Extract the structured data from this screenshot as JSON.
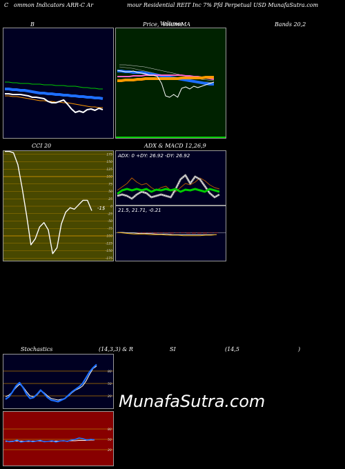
{
  "header": {
    "c": "C",
    "left": "ommon Indicators ARR-C Ar",
    "right": "mour Residential REIT Inc 7% Pfd Perpetual USD MunafaSutra.com"
  },
  "panels": {
    "b": {
      "title": "B"
    },
    "price": {
      "title_a": "Price,",
      "title_b": "Volume",
      "title_c": "MA",
      "overlap": "Volume"
    },
    "bands": {
      "title": "Bands 20,2"
    },
    "cci": {
      "title": "CCI 20",
      "last": "-1$"
    },
    "adx": {
      "title": "ADX  & MACD 12,26,9",
      "readout": "ADX: 0  +DY: 26.92  -DY: 26.92"
    },
    "macd": {
      "readout": "21.5,  21.71,  -0.21"
    },
    "stoch": {
      "title": "Stochastics",
      "params": "(14,3,3) & R",
      "si": "SI",
      "rsi_params": "(14,5",
      "close_paren": ")"
    }
  },
  "watermark": "MunafaSutra.com",
  "colors": {
    "navy": "#000022",
    "dark_green": "#002200",
    "olive": "#484800",
    "red_bg": "#880000",
    "blue": "#1e6fff",
    "white": "#ffffff",
    "orange": "#ff9900",
    "green": "#00cc00",
    "pink": "#ff66cc",
    "grid": "#aa7700"
  },
  "chart_data": [
    {
      "type": "line",
      "name": "bollinger",
      "series": [
        {
          "values": [
            78,
            78,
            79,
            79,
            80,
            80,
            80,
            81,
            81,
            81,
            82,
            82,
            82,
            83,
            83,
            83,
            84,
            84,
            84,
            85,
            86,
            86,
            87,
            87,
            88,
            88
          ]
        },
        {
          "values": [
            88,
            88,
            89,
            89,
            90,
            90,
            91,
            92,
            93,
            94,
            94,
            95,
            95,
            96,
            96,
            97,
            97,
            98,
            98,
            99,
            99,
            100,
            100,
            101,
            101,
            102
          ]
        },
        {
          "values": [
            98,
            98,
            99,
            99,
            100,
            101,
            102,
            103,
            104,
            105,
            105,
            106,
            106,
            107,
            107,
            108,
            108,
            109,
            110,
            111,
            112,
            113,
            114,
            114,
            115,
            115
          ]
        },
        {
          "values": [
            95,
            95,
            96,
            96,
            96,
            97,
            98,
            100,
            100,
            101,
            102,
            106,
            108,
            108,
            106,
            104,
            110,
            117,
            122,
            120,
            122,
            118,
            117,
            119,
            116,
            118
          ]
        }
      ]
    },
    {
      "type": "line",
      "name": "price-volume-ma",
      "series": [
        {
          "values": [
            102,
            102,
            103,
            103,
            104,
            104,
            104,
            105,
            106,
            107,
            108,
            109,
            110,
            111,
            112,
            113,
            114,
            115,
            116,
            117,
            118,
            119,
            120,
            121,
            121
          ]
        },
        {
          "values": [
            110,
            110,
            110,
            110,
            109,
            109,
            109,
            108,
            108,
            108,
            108,
            108,
            108,
            108,
            108,
            108,
            108,
            109,
            109,
            110,
            110,
            111,
            112,
            113,
            114
          ]
        },
        {
          "values": [
            116,
            116,
            115,
            115,
            115,
            114,
            114,
            113,
            113,
            113,
            113,
            113,
            113,
            113,
            113,
            113,
            112,
            112,
            112,
            112,
            112,
            112,
            111,
            111,
            111
          ]
        },
        {
          "values": [
            101,
            102,
            103,
            103,
            102,
            104,
            105,
            106,
            108,
            108,
            110,
            120,
            138,
            140,
            136,
            140,
            127,
            125,
            128,
            124,
            126,
            124,
            122,
            120,
            118
          ]
        }
      ]
    },
    {
      "type": "line",
      "name": "cci",
      "ylim": [
        -175,
        175
      ],
      "y_ticks": [
        "175",
        "150",
        "125",
        "100",
        "75",
        "50",
        "25",
        "0",
        "-25",
        "-50",
        "-75",
        "-100",
        "-125",
        "-150",
        "-175"
      ],
      "values": [
        185,
        185,
        180,
        140,
        60,
        -30,
        -130,
        -110,
        -70,
        -55,
        -80,
        -160,
        -140,
        -60,
        -20,
        -5,
        -10,
        5,
        20,
        20,
        -15
      ]
    },
    {
      "type": "line",
      "name": "adx-dmi",
      "series": [
        {
          "values": [
            55,
            60,
            62,
            60,
            62,
            60,
            62,
            58,
            61,
            60,
            62,
            60,
            62,
            58,
            61,
            60,
            62,
            60,
            58,
            62,
            60,
            58
          ]
        },
        {
          "values": [
            60,
            65,
            70,
            78,
            72,
            68,
            70,
            64,
            60,
            64,
            66,
            60,
            58,
            64,
            70,
            68,
            72,
            78,
            74,
            68,
            64,
            62
          ]
        },
        {
          "values": [
            52,
            54,
            52,
            48,
            54,
            58,
            56,
            50,
            52,
            54,
            52,
            50,
            62,
            76,
            82,
            70,
            80,
            76,
            66,
            56,
            50,
            54
          ]
        }
      ]
    },
    {
      "type": "line",
      "name": "macd",
      "series": [
        {
          "values": [
            21.9,
            21.8,
            21.7,
            21.6,
            21.6,
            21.6,
            21.5,
            21.5,
            21.5,
            21.4,
            21.4,
            21.4,
            21.3,
            21.3,
            21.3,
            21.3,
            21.4,
            21.4,
            21.5
          ]
        },
        {
          "values": [
            21.9,
            21.9,
            21.8,
            21.8,
            21.7,
            21.7,
            21.7,
            21.6,
            21.6,
            21.6,
            21.5,
            21.5,
            21.5,
            21.5,
            21.5,
            21.5,
            21.5,
            21.5,
            21.5
          ]
        }
      ]
    },
    {
      "type": "line",
      "name": "stochastics",
      "y_ticks": [
        "80",
        "50",
        "20"
      ],
      "series": [
        {
          "values": [
            18,
            22,
            30,
            40,
            48,
            42,
            30,
            20,
            18,
            22,
            32,
            28,
            20,
            14,
            12,
            10,
            12,
            14,
            20,
            28,
            34,
            38,
            44,
            56,
            72,
            86,
            92
          ]
        },
        {
          "values": [
            12,
            18,
            30,
            44,
            52,
            40,
            24,
            14,
            16,
            24,
            34,
            26,
            16,
            10,
            8,
            6,
            10,
            14,
            22,
            30,
            36,
            42,
            50,
            64,
            78,
            88,
            96
          ]
        }
      ]
    },
    {
      "type": "line",
      "name": "rsi",
      "y_ticks": [
        "80",
        "50",
        "20"
      ],
      "series": [
        {
          "values": [
            44,
            44,
            45,
            45,
            45,
            44,
            44,
            45,
            45,
            45,
            44,
            44,
            44,
            45,
            45,
            45,
            45,
            46,
            46,
            47,
            47,
            47,
            48,
            48
          ]
        },
        {
          "values": [
            46,
            43,
            44,
            48,
            42,
            44,
            46,
            43,
            45,
            47,
            43,
            44,
            46,
            42,
            45,
            46,
            44,
            48,
            50,
            54,
            52,
            48,
            50,
            49
          ]
        }
      ]
    }
  ]
}
